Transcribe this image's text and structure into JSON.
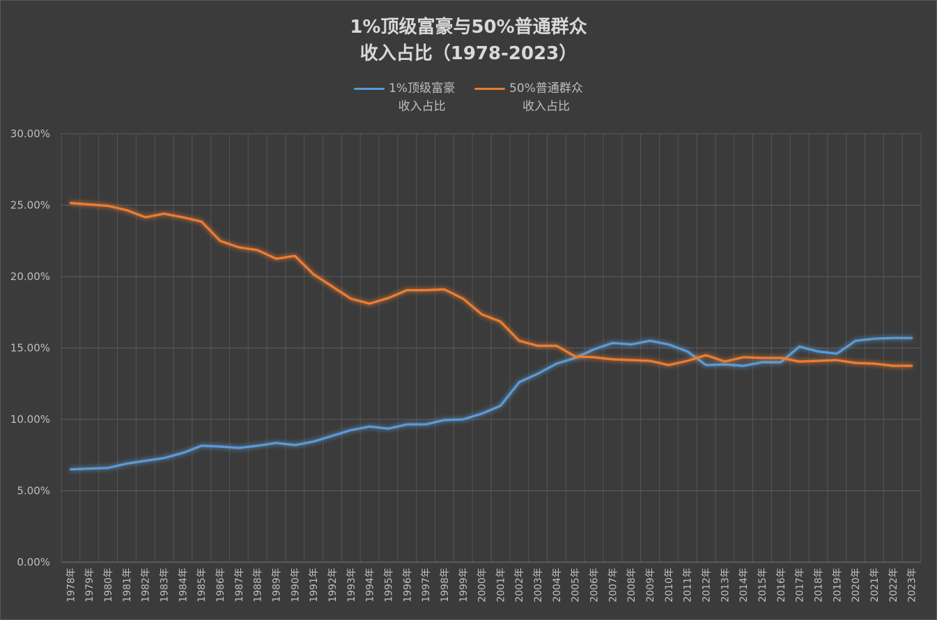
{
  "chart_data": {
    "type": "line",
    "title_line1": "1%顶级富豪与50%普通群众",
    "title_line2": "收入占比（1978-2023）",
    "xlabel": "",
    "ylabel": "",
    "ylim": [
      0,
      30
    ],
    "y_ticks": [
      "0.00%",
      "5.00%",
      "10.00%",
      "15.00%",
      "20.00%",
      "25.00%",
      "30.00%"
    ],
    "grid": true,
    "legend_position": "top",
    "categories": [
      "1978年",
      "1979年",
      "1980年",
      "1981年",
      "1982年",
      "1983年",
      "1984年",
      "1985年",
      "1986年",
      "1987年",
      "1988年",
      "1989年",
      "1990年",
      "1991年",
      "1992年",
      "1993年",
      "1994年",
      "1995年",
      "1996年",
      "1997年",
      "1998年",
      "1999年",
      "2000年",
      "2001年",
      "2002年",
      "2003年",
      "2004年",
      "2005年",
      "2006年",
      "2007年",
      "2008年",
      "2009年",
      "2010年",
      "2011年",
      "2012年",
      "2013年",
      "2014年",
      "2015年",
      "2016年",
      "2017年",
      "2018年",
      "2019年",
      "2020年",
      "2021年",
      "2022年",
      "2023年"
    ],
    "series": [
      {
        "name": "1%顶级富豪\n收入占比",
        "color": "#5b9bd5",
        "values": [
          6.5,
          6.55,
          6.6,
          6.9,
          7.1,
          7.3,
          7.65,
          8.15,
          8.1,
          8.0,
          8.15,
          8.35,
          8.2,
          8.45,
          8.85,
          9.25,
          9.5,
          9.35,
          9.65,
          9.65,
          9.95,
          10.0,
          10.4,
          10.95,
          12.6,
          13.2,
          13.9,
          14.3,
          14.9,
          15.35,
          15.25,
          15.5,
          15.25,
          14.75,
          13.8,
          13.85,
          13.75,
          14.0,
          14.0,
          15.1,
          14.75,
          14.6,
          15.5,
          15.65,
          15.7,
          15.7
        ]
      },
      {
        "name": "50%普通群众\n收入占比",
        "color": "#ed7d31",
        "values": [
          25.15,
          25.05,
          24.95,
          24.65,
          24.15,
          24.4,
          24.15,
          23.85,
          22.5,
          22.05,
          21.85,
          21.25,
          21.45,
          20.15,
          19.3,
          18.45,
          18.1,
          18.5,
          19.05,
          19.05,
          19.1,
          18.45,
          17.35,
          16.85,
          15.5,
          15.15,
          15.15,
          14.4,
          14.35,
          14.2,
          14.15,
          14.1,
          13.8,
          14.1,
          14.5,
          14.05,
          14.35,
          14.3,
          14.3,
          14.05,
          14.1,
          14.15,
          13.95,
          13.9,
          13.75,
          13.75
        ]
      }
    ]
  }
}
